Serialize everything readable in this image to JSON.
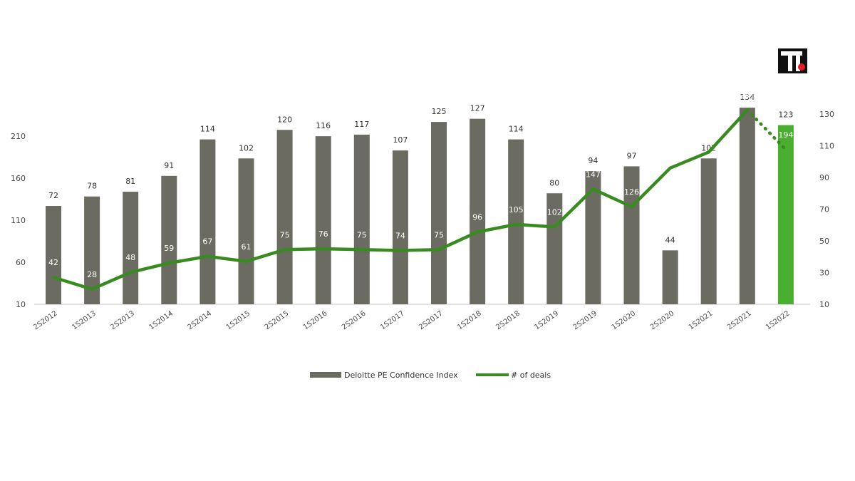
{
  "logo": {
    "name": "logo-icon"
  },
  "colors": {
    "bar": "#6b6b62",
    "bar_highlight": "#4aaf30",
    "line": "#3a8a22",
    "axis": "#d9d9d9"
  },
  "chart_data": {
    "type": "bar",
    "categories": [
      "2S2012",
      "1S2013",
      "2S2013",
      "1S2014",
      "2S2014",
      "1S2015",
      "2S2015",
      "1S2016",
      "2S2016",
      "1S2017",
      "2S2017",
      "1S2018",
      "2S2018",
      "1S2019",
      "2S2019",
      "1S2020",
      "2S2020",
      "1S2021",
      "2S2021",
      "1S2022"
    ],
    "series": [
      {
        "name": "Deloitte PE Confidence Index",
        "type": "bar",
        "axis": "right",
        "values": [
          72,
          78,
          81,
          91,
          114,
          102,
          120,
          116,
          117,
          107,
          125,
          127,
          114,
          80,
          94,
          97,
          44,
          102,
          134,
          123
        ],
        "highlight_index": 19
      },
      {
        "name": "# of deals",
        "type": "line",
        "axis": "left",
        "values": [
          42,
          28,
          48,
          59,
          67,
          61,
          75,
          76,
          75,
          74,
          75,
          96,
          105,
          102,
          147,
          126,
          172,
          191,
          241,
          194
        ],
        "dotted_last_segment": true
      }
    ],
    "left_axis": {
      "ticks": [
        "10",
        "60",
        "110",
        "160",
        "210"
      ],
      "ylim": [
        10,
        250
      ]
    },
    "right_axis": {
      "ticks": [
        "10",
        "30",
        "50",
        "70",
        "90",
        "110",
        "130"
      ],
      "ylim": [
        10,
        139
      ]
    },
    "legend_position": "bottom",
    "grid": false
  }
}
